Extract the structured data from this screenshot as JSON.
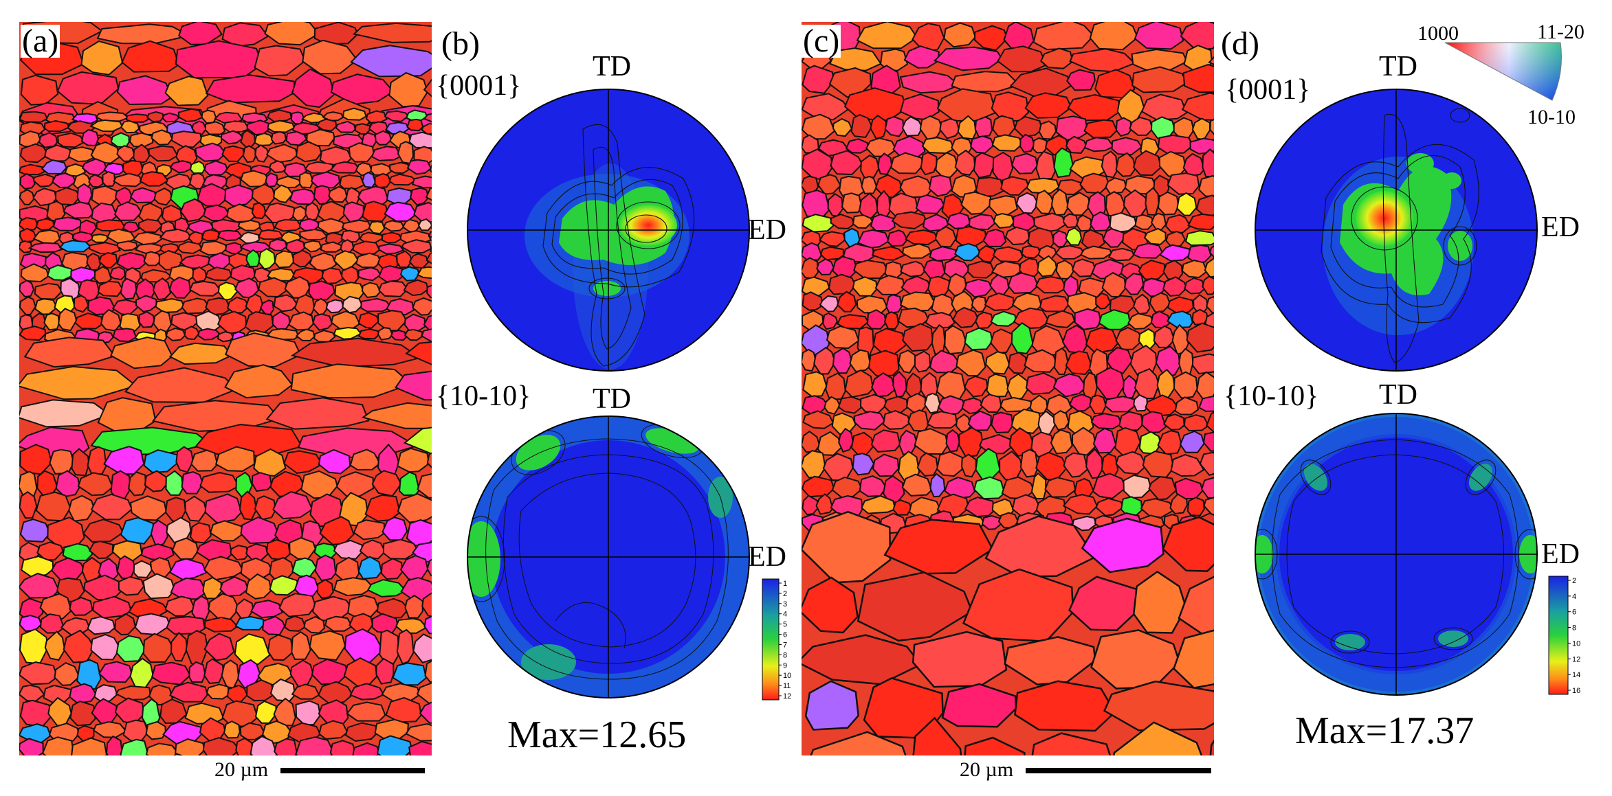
{
  "panels": {
    "a": {
      "label": "(a)",
      "scale_bar": "20 µm"
    },
    "b": {
      "label": "(b)",
      "pf1_family": "{0001}",
      "pf2_family": "{10-10}",
      "td": "TD",
      "ed": "ED",
      "max": "Max=12.65",
      "legend_ticks": [
        "1",
        "2",
        "3",
        "4",
        "5",
        "6",
        "7",
        "8",
        "9",
        "10",
        "11",
        "12"
      ]
    },
    "c": {
      "label": "(c)",
      "scale_bar": "20 µm"
    },
    "d": {
      "label": "(d)",
      "pf1_family": "{0001}",
      "pf2_family": "{10-10}",
      "td": "TD",
      "ed": "ED",
      "max": "Max=17.37",
      "legend_ticks": [
        "2",
        "4",
        "6",
        "8",
        "10",
        "12",
        "14",
        "16"
      ]
    }
  },
  "ipf_key": {
    "corner_1000": "1000",
    "corner_11_20": "11-20",
    "corner_10_10": "10-10"
  },
  "colors": {
    "basal_red": "#ff2a1a",
    "matrix_blue": "#1a22e6",
    "boundary": "#111111"
  }
}
